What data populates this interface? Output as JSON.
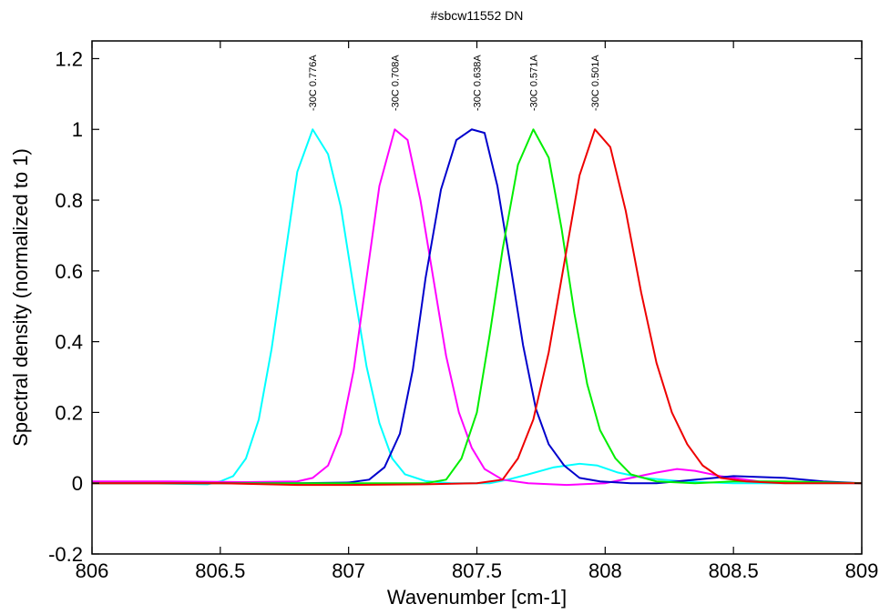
{
  "chart_data": {
    "type": "line",
    "title": "#sbcw11552 DN",
    "xlabel": "Wavenumber [cm-1]",
    "ylabel": "Spectral density (normalized to 1)",
    "xlim": [
      806,
      809
    ],
    "ylim": [
      -0.2,
      1.25
    ],
    "xticks": [
      806,
      806.5,
      807,
      807.5,
      808,
      808.5,
      809
    ],
    "xtick_labels": [
      "806",
      "806.5",
      "807",
      "807.5",
      "808",
      "808.5",
      "809"
    ],
    "yticks": [
      -0.2,
      0,
      0.2,
      0.4,
      0.6,
      0.8,
      1,
      1.2
    ],
    "ytick_labels": [
      "-0.2",
      "0",
      "0.2",
      "0.4",
      "0.6",
      "0.8",
      "1",
      "1.2"
    ],
    "grid": false,
    "series": [
      {
        "color": "#00ffff",
        "annotation": "-30C 0.776A",
        "points": [
          [
            806,
            0.0
          ],
          [
            806.2,
            0.0
          ],
          [
            806.45,
            -0.003
          ],
          [
            806.5,
            0.005
          ],
          [
            806.55,
            0.02
          ],
          [
            806.6,
            0.07
          ],
          [
            806.65,
            0.18
          ],
          [
            806.7,
            0.38
          ],
          [
            806.75,
            0.63
          ],
          [
            806.8,
            0.88
          ],
          [
            806.86,
            1.0
          ],
          [
            806.92,
            0.93
          ],
          [
            806.97,
            0.78
          ],
          [
            807.02,
            0.55
          ],
          [
            807.07,
            0.33
          ],
          [
            807.12,
            0.17
          ],
          [
            807.17,
            0.07
          ],
          [
            807.22,
            0.025
          ],
          [
            807.3,
            0.006
          ],
          [
            807.4,
            0.0
          ],
          [
            807.55,
            0.0
          ],
          [
            807.62,
            0.01
          ],
          [
            807.7,
            0.025
          ],
          [
            807.8,
            0.045
          ],
          [
            807.9,
            0.055
          ],
          [
            807.97,
            0.05
          ],
          [
            808.05,
            0.03
          ],
          [
            808.15,
            0.015
          ],
          [
            808.3,
            0.005
          ],
          [
            808.5,
            0.0
          ],
          [
            809,
            0.0
          ]
        ]
      },
      {
        "color": "#ff00ff",
        "annotation": "-30C 0.708A",
        "points": [
          [
            806,
            0.005
          ],
          [
            806.3,
            0.005
          ],
          [
            806.6,
            0.003
          ],
          [
            806.8,
            0.005
          ],
          [
            806.86,
            0.015
          ],
          [
            806.92,
            0.05
          ],
          [
            806.97,
            0.14
          ],
          [
            807.02,
            0.32
          ],
          [
            807.07,
            0.58
          ],
          [
            807.12,
            0.84
          ],
          [
            807.18,
            1.0
          ],
          [
            807.23,
            0.97
          ],
          [
            807.28,
            0.8
          ],
          [
            807.33,
            0.58
          ],
          [
            807.38,
            0.36
          ],
          [
            807.43,
            0.2
          ],
          [
            807.48,
            0.1
          ],
          [
            807.53,
            0.04
          ],
          [
            807.6,
            0.01
          ],
          [
            807.7,
            0.0
          ],
          [
            807.85,
            -0.005
          ],
          [
            808.0,
            0.0
          ],
          [
            808.1,
            0.015
          ],
          [
            808.2,
            0.03
          ],
          [
            808.28,
            0.04
          ],
          [
            808.35,
            0.035
          ],
          [
            808.45,
            0.02
          ],
          [
            808.6,
            0.005
          ],
          [
            809,
            0.0
          ]
        ]
      },
      {
        "color": "#0000cc",
        "annotation": "-30C 0.638A",
        "points": [
          [
            806,
            0.0
          ],
          [
            806.5,
            0.0
          ],
          [
            806.8,
            0.0
          ],
          [
            807.0,
            0.002
          ],
          [
            807.08,
            0.01
          ],
          [
            807.14,
            0.045
          ],
          [
            807.2,
            0.14
          ],
          [
            807.25,
            0.32
          ],
          [
            807.3,
            0.58
          ],
          [
            807.36,
            0.83
          ],
          [
            807.42,
            0.97
          ],
          [
            807.48,
            1.0
          ],
          [
            807.53,
            0.99
          ],
          [
            807.58,
            0.84
          ],
          [
            807.63,
            0.62
          ],
          [
            807.68,
            0.39
          ],
          [
            807.73,
            0.21
          ],
          [
            807.78,
            0.11
          ],
          [
            807.84,
            0.05
          ],
          [
            807.9,
            0.015
          ],
          [
            807.98,
            0.005
          ],
          [
            808.1,
            0.0
          ],
          [
            808.2,
            0.0
          ],
          [
            808.35,
            0.01
          ],
          [
            808.5,
            0.02
          ],
          [
            808.7,
            0.015
          ],
          [
            808.85,
            0.005
          ],
          [
            809,
            0.0
          ]
        ]
      },
      {
        "color": "#00ee00",
        "annotation": "-30C 0.571A",
        "points": [
          [
            806,
            0.0
          ],
          [
            806.5,
            0.0
          ],
          [
            807.0,
            0.0
          ],
          [
            807.3,
            0.0
          ],
          [
            807.38,
            0.01
          ],
          [
            807.44,
            0.07
          ],
          [
            807.5,
            0.2
          ],
          [
            807.55,
            0.42
          ],
          [
            807.6,
            0.66
          ],
          [
            807.66,
            0.9
          ],
          [
            807.72,
            1.0
          ],
          [
            807.78,
            0.92
          ],
          [
            807.83,
            0.72
          ],
          [
            807.88,
            0.48
          ],
          [
            807.93,
            0.28
          ],
          [
            807.98,
            0.15
          ],
          [
            808.04,
            0.07
          ],
          [
            808.1,
            0.025
          ],
          [
            808.2,
            0.005
          ],
          [
            808.35,
            0.0
          ],
          [
            808.5,
            0.005
          ],
          [
            808.7,
            0.005
          ],
          [
            809,
            0.0
          ]
        ]
      },
      {
        "color": "#ee0000",
        "annotation": "-30C 0.501A",
        "points": [
          [
            806,
            0.0
          ],
          [
            806.5,
            0.0
          ],
          [
            806.8,
            -0.005
          ],
          [
            807.0,
            -0.005
          ],
          [
            807.3,
            -0.003
          ],
          [
            807.5,
            0.0
          ],
          [
            807.6,
            0.01
          ],
          [
            807.66,
            0.07
          ],
          [
            807.72,
            0.18
          ],
          [
            807.78,
            0.37
          ],
          [
            807.84,
            0.62
          ],
          [
            807.9,
            0.87
          ],
          [
            807.96,
            1.0
          ],
          [
            808.02,
            0.95
          ],
          [
            808.08,
            0.77
          ],
          [
            808.14,
            0.54
          ],
          [
            808.2,
            0.34
          ],
          [
            808.26,
            0.2
          ],
          [
            808.32,
            0.11
          ],
          [
            808.38,
            0.05
          ],
          [
            808.45,
            0.015
          ],
          [
            808.55,
            0.005
          ],
          [
            808.7,
            0.0
          ],
          [
            809,
            0.0
          ]
        ]
      }
    ],
    "annotations": [
      {
        "text": "-30C 0.776A",
        "x": 806.86
      },
      {
        "text": "-30C 0.708A",
        "x": 807.18
      },
      {
        "text": "-30C 0.638A",
        "x": 807.5
      },
      {
        "text": "-30C 0.571A",
        "x": 807.72
      },
      {
        "text": "-30C 0.501A",
        "x": 807.96
      }
    ]
  }
}
